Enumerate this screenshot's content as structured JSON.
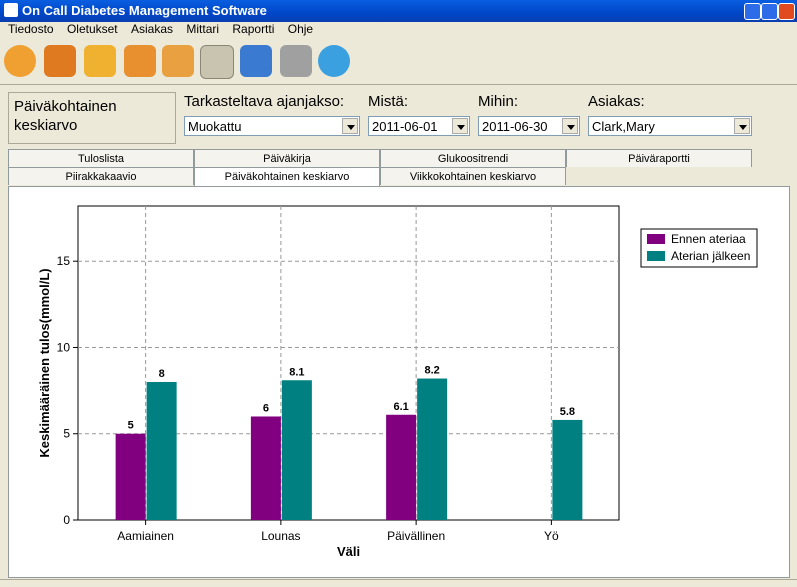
{
  "window": {
    "title": "On Call Diabetes Management Software",
    "menu": [
      "Tiedosto",
      "Oletukset",
      "Asiakas",
      "Mittari",
      "Raportti",
      "Ohje"
    ]
  },
  "filter": {
    "report_label": "Päiväkohtainen keskiarvo",
    "period_label": "Tarkasteltava ajanjakso:",
    "period": "Muokattu",
    "from_label": "Mistä:",
    "from": "2011-06-01",
    "to_label": "Mihin:",
    "to": "2011-06-30",
    "client_label": "Asiakas:",
    "client": "Clark,Mary"
  },
  "tabs": [
    [
      "Tuloslista",
      "Päiväkirja",
      "Glukoositrendi",
      "Päiväraportti"
    ],
    [
      "Piirakkakaavio",
      "Päiväkohtainen keskiarvo",
      "Viikkokohtainen keskiarvo"
    ]
  ],
  "chart_data": {
    "type": "bar",
    "categories": [
      "Aamiainen",
      "Lounas",
      "Päivällinen",
      "Yö"
    ],
    "series": [
      {
        "name": "Ennen ateriaa",
        "color": "#800080",
        "values": [
          5,
          6,
          6.1,
          null
        ]
      },
      {
        "name": "Aterian jälkeen",
        "color": "#008080",
        "values": [
          8,
          8.1,
          8.2,
          5.8
        ]
      }
    ],
    "ylim": [
      0,
      18.2
    ],
    "yticks": [
      0,
      5,
      10,
      15
    ],
    "y_label": "Keskimääräinen tulos(mmol/L)",
    "x_label": "Väli",
    "grid": true,
    "legend": "upper right"
  }
}
